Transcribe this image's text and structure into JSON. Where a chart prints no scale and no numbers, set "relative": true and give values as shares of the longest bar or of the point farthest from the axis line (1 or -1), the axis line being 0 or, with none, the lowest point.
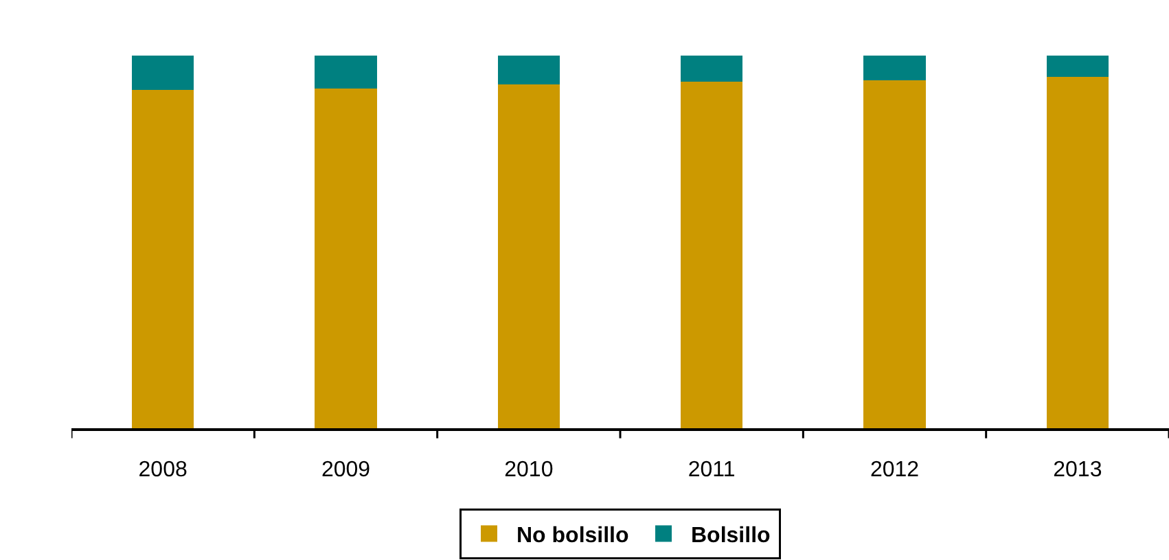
{
  "chart_data": {
    "type": "bar",
    "stacked": true,
    "relative": true,
    "legend": "bottom",
    "categories": [
      "2008",
      "2009",
      "2010",
      "2011",
      "2012",
      "2013"
    ],
    "series": [
      {
        "name": "No bolsillo",
        "color": "#cc9900",
        "values": [
          0.907,
          0.911,
          0.922,
          0.93,
          0.934,
          0.942
        ]
      },
      {
        "name": "Bolsillo",
        "color": "#008080",
        "values": [
          0.093,
          0.089,
          0.078,
          0.07,
          0.066,
          0.058
        ]
      }
    ]
  }
}
